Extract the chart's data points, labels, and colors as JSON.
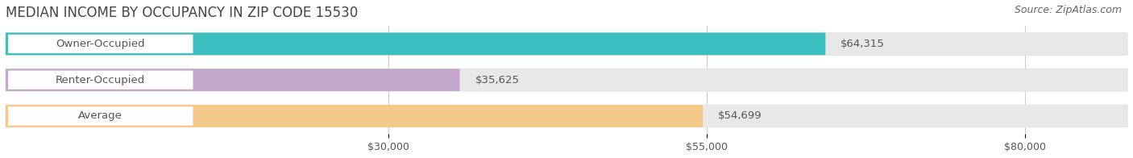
{
  "title": "MEDIAN INCOME BY OCCUPANCY IN ZIP CODE 15530",
  "source": "Source: ZipAtlas.com",
  "categories": [
    "Owner-Occupied",
    "Renter-Occupied",
    "Average"
  ],
  "values": [
    64315,
    35625,
    54699
  ],
  "bar_colors": [
    "#3bbfbf",
    "#c4a8cc",
    "#f5c98a"
  ],
  "bar_labels": [
    "$64,315",
    "$35,625",
    "$54,699"
  ],
  "label_text_color": "#555555",
  "value_label_color": "#555555",
  "x_ticks": [
    30000,
    55000,
    80000
  ],
  "x_tick_labels": [
    "$30,000",
    "$55,000",
    "$80,000"
  ],
  "x_min": 0,
  "x_max": 88000,
  "background_color": "#ffffff",
  "bar_bg_color": "#e8e8e8",
  "label_bg_color": "#ffffff",
  "title_fontsize": 12,
  "source_fontsize": 9,
  "tick_fontsize": 9,
  "label_fontsize": 9.5,
  "value_fontsize": 9.5,
  "bar_height": 0.62,
  "grid_color": "#cccccc"
}
